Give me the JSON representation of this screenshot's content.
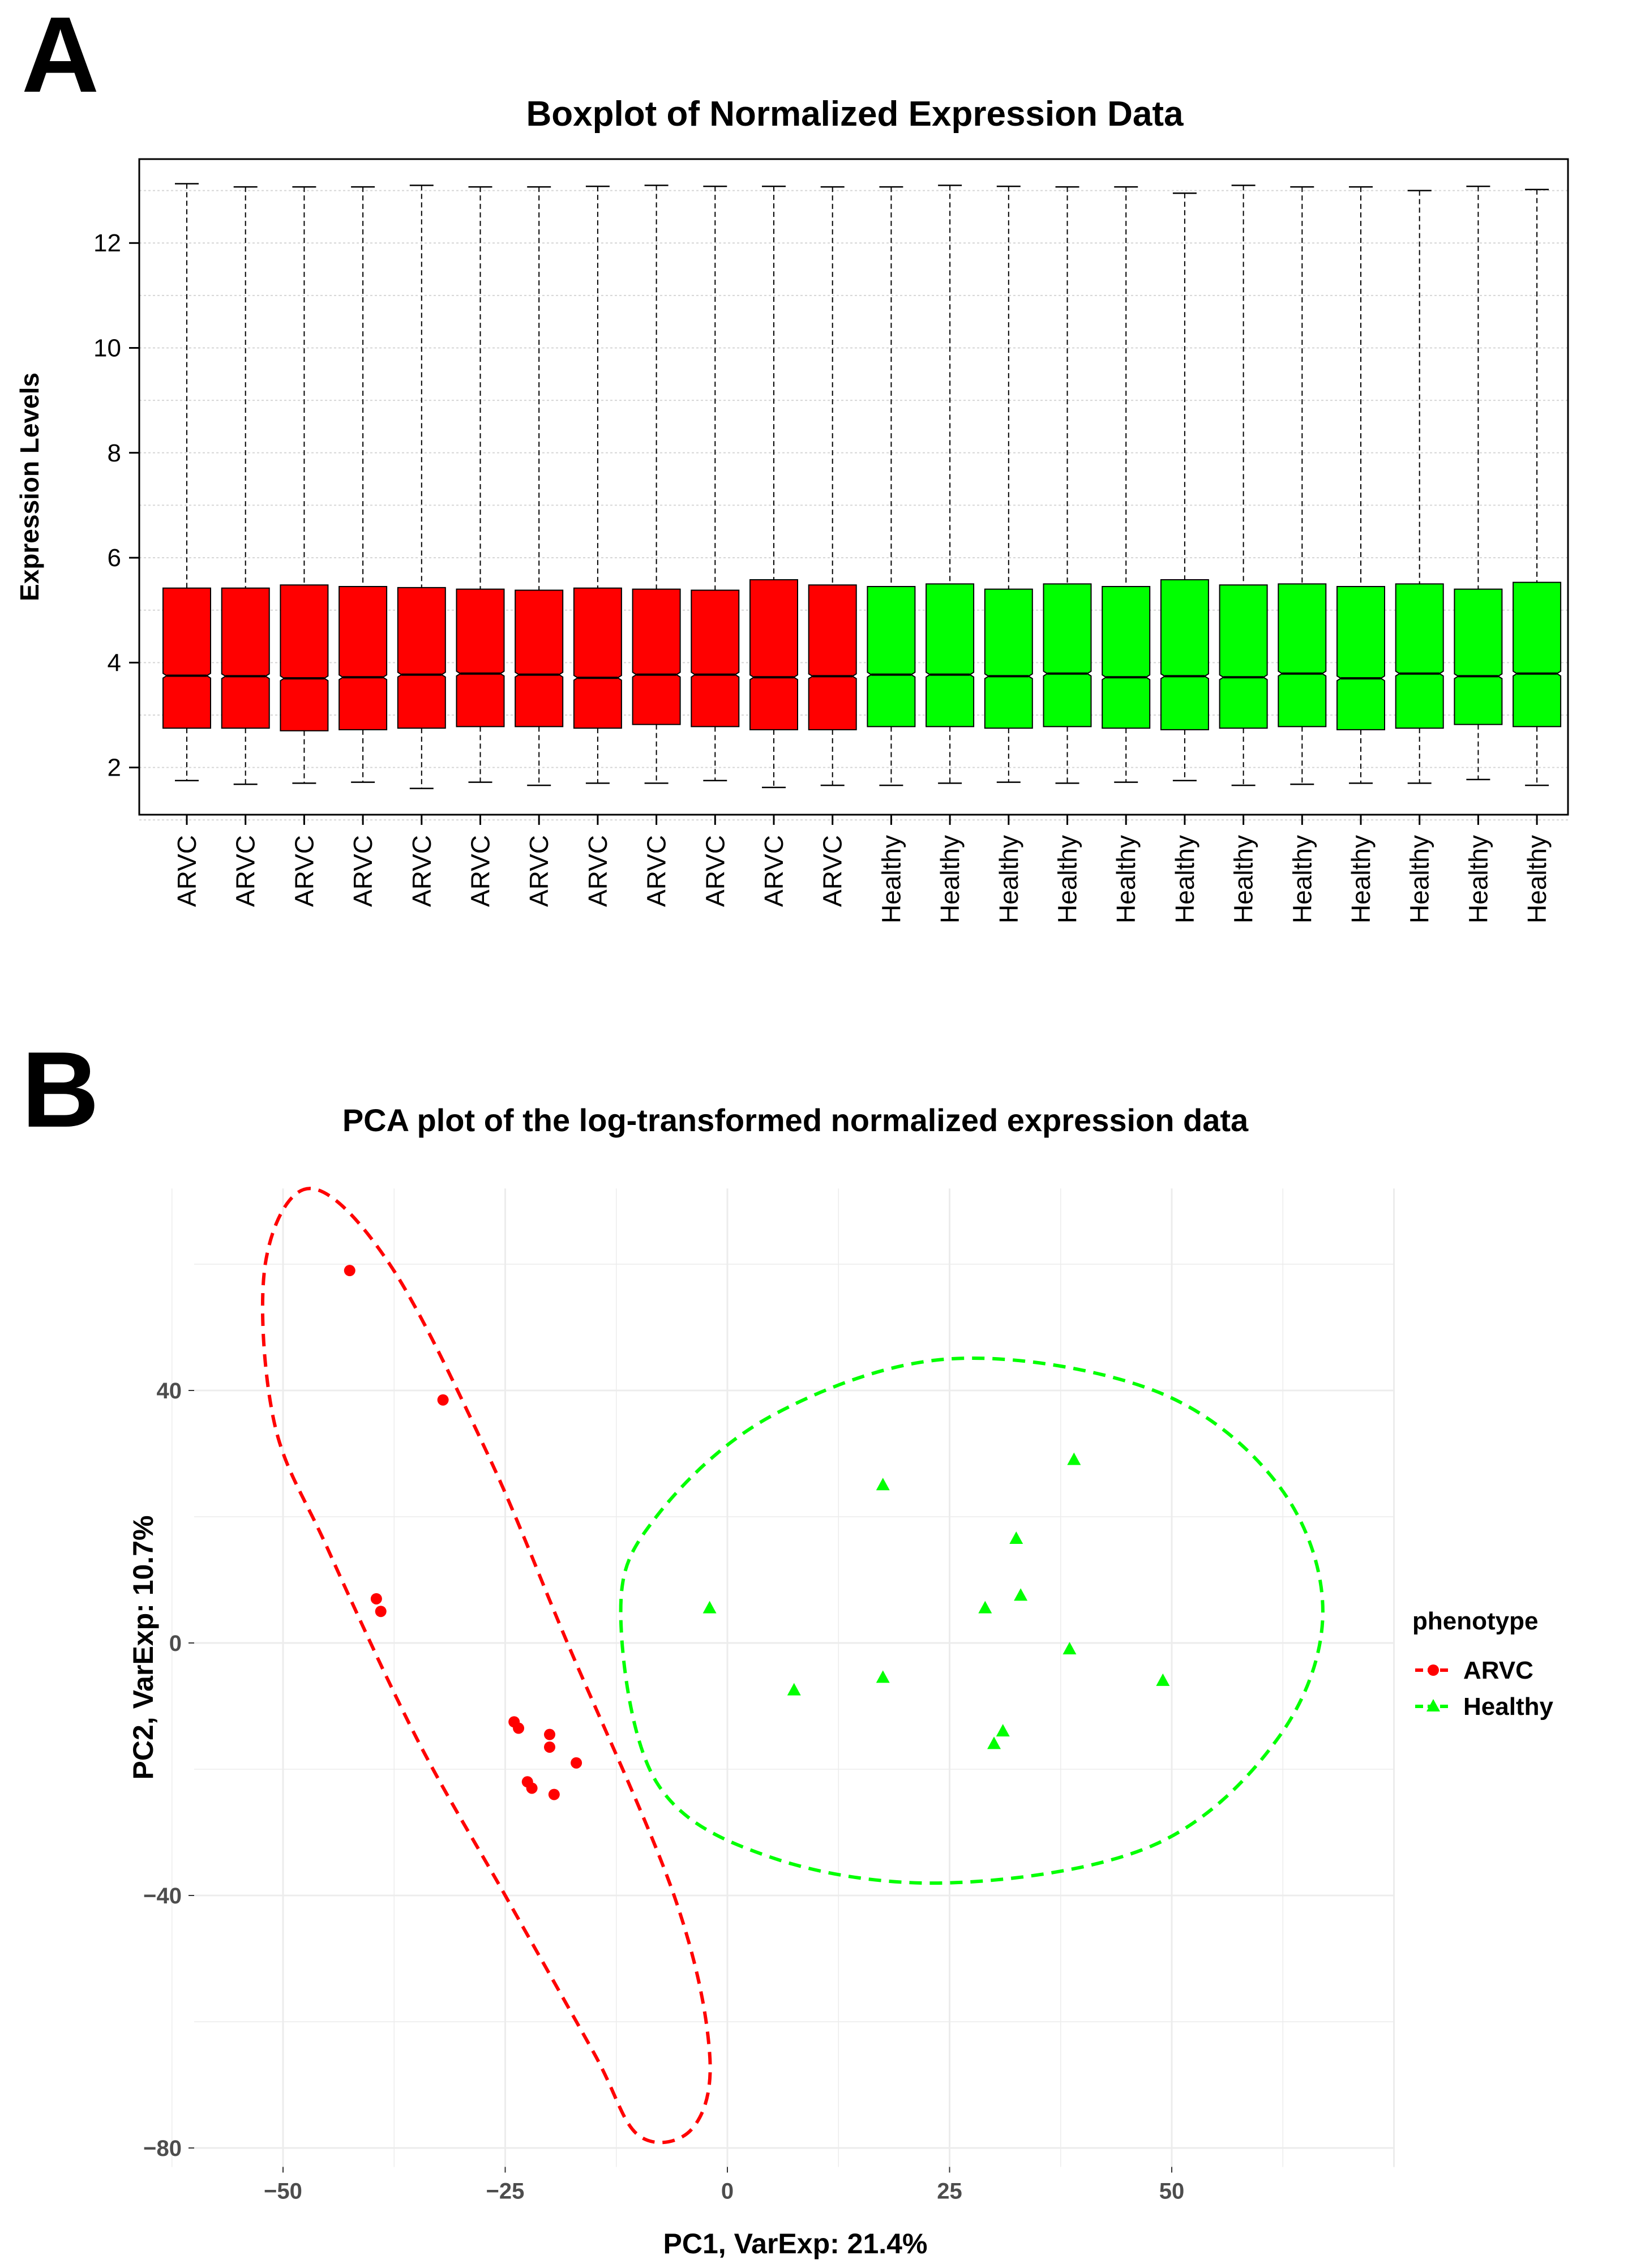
{
  "panels": {
    "a": {
      "letter": "A"
    },
    "b": {
      "letter": "B"
    }
  },
  "colors": {
    "arvc": "#ff0000",
    "healthy": "#00ff00",
    "axis": "#000000",
    "grid": "#d9d9d9",
    "tick_text": "#4d4d4d"
  },
  "chart_data": [
    {
      "type": "boxplot",
      "title": "Boxplot of Normalized Expression Data",
      "xlabel": "",
      "ylabel": "Expression Levels",
      "ylim": [
        1.1,
        13.6
      ],
      "yticks": [
        2,
        4,
        6,
        8,
        10,
        12
      ],
      "grid": true,
      "notched": true,
      "categories": [
        "ARVC",
        "ARVC",
        "ARVC",
        "ARVC",
        "ARVC",
        "ARVC",
        "ARVC",
        "ARVC",
        "ARVC",
        "ARVC",
        "ARVC",
        "ARVC",
        "Healthy",
        "Healthy",
        "Healthy",
        "Healthy",
        "Healthy",
        "Healthy",
        "Healthy",
        "Healthy",
        "Healthy",
        "Healthy",
        "Healthy",
        "Healthy"
      ],
      "boxes": [
        {
          "group": "ARVC",
          "min": 1.75,
          "q1": 2.75,
          "median": 3.75,
          "q3": 5.42,
          "max": 13.13
        },
        {
          "group": "ARVC",
          "min": 1.68,
          "q1": 2.75,
          "median": 3.74,
          "q3": 5.42,
          "max": 13.07
        },
        {
          "group": "ARVC",
          "min": 1.7,
          "q1": 2.7,
          "median": 3.7,
          "q3": 5.48,
          "max": 13.07
        },
        {
          "group": "ARVC",
          "min": 1.72,
          "q1": 2.72,
          "median": 3.72,
          "q3": 5.45,
          "max": 13.07
        },
        {
          "group": "ARVC",
          "min": 1.6,
          "q1": 2.75,
          "median": 3.77,
          "q3": 5.43,
          "max": 13.1
        },
        {
          "group": "ARVC",
          "min": 1.72,
          "q1": 2.78,
          "median": 3.79,
          "q3": 5.4,
          "max": 13.07
        },
        {
          "group": "ARVC",
          "min": 1.66,
          "q1": 2.78,
          "median": 3.77,
          "q3": 5.38,
          "max": 13.07
        },
        {
          "group": "ARVC",
          "min": 1.7,
          "q1": 2.75,
          "median": 3.71,
          "q3": 5.42,
          "max": 13.08
        },
        {
          "group": "ARVC",
          "min": 1.7,
          "q1": 2.82,
          "median": 3.77,
          "q3": 5.4,
          "max": 13.1
        },
        {
          "group": "ARVC",
          "min": 1.75,
          "q1": 2.78,
          "median": 3.77,
          "q3": 5.38,
          "max": 13.08
        },
        {
          "group": "ARVC",
          "min": 1.62,
          "q1": 2.72,
          "median": 3.72,
          "q3": 5.58,
          "max": 13.08
        },
        {
          "group": "ARVC",
          "min": 1.66,
          "q1": 2.72,
          "median": 3.74,
          "q3": 5.48,
          "max": 13.07
        },
        {
          "group": "Healthy",
          "min": 1.66,
          "q1": 2.78,
          "median": 3.77,
          "q3": 5.45,
          "max": 13.07
        },
        {
          "group": "Healthy",
          "min": 1.7,
          "q1": 2.78,
          "median": 3.77,
          "q3": 5.5,
          "max": 13.1
        },
        {
          "group": "Healthy",
          "min": 1.72,
          "q1": 2.75,
          "median": 3.74,
          "q3": 5.4,
          "max": 13.08
        },
        {
          "group": "Healthy",
          "min": 1.7,
          "q1": 2.78,
          "median": 3.79,
          "q3": 5.5,
          "max": 13.07
        },
        {
          "group": "Healthy",
          "min": 1.72,
          "q1": 2.75,
          "median": 3.72,
          "q3": 5.45,
          "max": 13.07
        },
        {
          "group": "Healthy",
          "min": 1.75,
          "q1": 2.72,
          "median": 3.74,
          "q3": 5.58,
          "max": 12.95
        },
        {
          "group": "Healthy",
          "min": 1.66,
          "q1": 2.75,
          "median": 3.72,
          "q3": 5.48,
          "max": 13.1
        },
        {
          "group": "Healthy",
          "min": 1.68,
          "q1": 2.78,
          "median": 3.79,
          "q3": 5.5,
          "max": 13.07
        },
        {
          "group": "Healthy",
          "min": 1.7,
          "q1": 2.72,
          "median": 3.7,
          "q3": 5.45,
          "max": 13.07
        },
        {
          "group": "Healthy",
          "min": 1.7,
          "q1": 2.75,
          "median": 3.79,
          "q3": 5.5,
          "max": 13.0
        },
        {
          "group": "Healthy",
          "min": 1.77,
          "q1": 2.82,
          "median": 3.74,
          "q3": 5.4,
          "max": 13.08
        },
        {
          "group": "Healthy",
          "min": 1.66,
          "q1": 2.78,
          "median": 3.79,
          "q3": 5.53,
          "max": 13.02
        }
      ]
    },
    {
      "type": "scatter",
      "title": "PCA plot of the log-transformed normalized expression data",
      "xlabel": "PC1, VarExp: 21.4%",
      "ylabel": "PC2, VarExp: 10.7%",
      "xlim": [
        -60,
        75
      ],
      "ylim": [
        -83,
        72
      ],
      "xticks": [
        -50,
        -25,
        0,
        25,
        50
      ],
      "yticks": [
        -80,
        -40,
        0,
        40
      ],
      "grid": true,
      "legend": {
        "title": "phenotype",
        "position": "right"
      },
      "series": [
        {
          "name": "ARVC",
          "marker": "circle",
          "color": "#ff0000",
          "points": [
            [
              -42.5,
              59
            ],
            [
              -32,
              38.5
            ],
            [
              -39.5,
              7
            ],
            [
              -39,
              5
            ],
            [
              -24,
              -12.5
            ],
            [
              -23.5,
              -13.5
            ],
            [
              -20,
              -14.5
            ],
            [
              -20,
              -16.5
            ],
            [
              -17,
              -19
            ],
            [
              -22.5,
              -22
            ],
            [
              -22,
              -23
            ],
            [
              -19.5,
              -24
            ]
          ],
          "ellipse": [
            [
              -47,
              72
            ],
            [
              -52,
              60
            ],
            [
              -51,
              35
            ],
            [
              -45,
              15
            ],
            [
              -35,
              -15
            ],
            [
              -25,
              -40
            ],
            [
              -15,
              -65
            ],
            [
              -10,
              -78
            ],
            [
              -4,
              -77
            ],
            [
              -2,
              -65
            ],
            [
              -6,
              -40
            ],
            [
              -18,
              0
            ],
            [
              -27,
              30
            ],
            [
              -38,
              60
            ]
          ]
        },
        {
          "name": "Healthy",
          "marker": "triangle",
          "color": "#00ff00",
          "points": [
            [
              -2,
              5.5
            ],
            [
              17.5,
              25
            ],
            [
              7.5,
              -7.5
            ],
            [
              17.5,
              -5.5
            ],
            [
              29,
              5.5
            ],
            [
              32.5,
              16.5
            ],
            [
              33,
              7.5
            ],
            [
              39,
              29
            ],
            [
              38.5,
              -1
            ],
            [
              49,
              -6
            ],
            [
              30,
              -16
            ],
            [
              31,
              -14
            ]
          ],
          "ellipse": [
            [
              -12,
              5
            ],
            [
              -8,
              20
            ],
            [
              5,
              36
            ],
            [
              25,
              45
            ],
            [
              48,
              40
            ],
            [
              62,
              25
            ],
            [
              67,
              5
            ],
            [
              62,
              -15
            ],
            [
              48,
              -32
            ],
            [
              25,
              -38
            ],
            [
              5,
              -34
            ],
            [
              -8,
              -22
            ]
          ]
        }
      ]
    }
  ]
}
